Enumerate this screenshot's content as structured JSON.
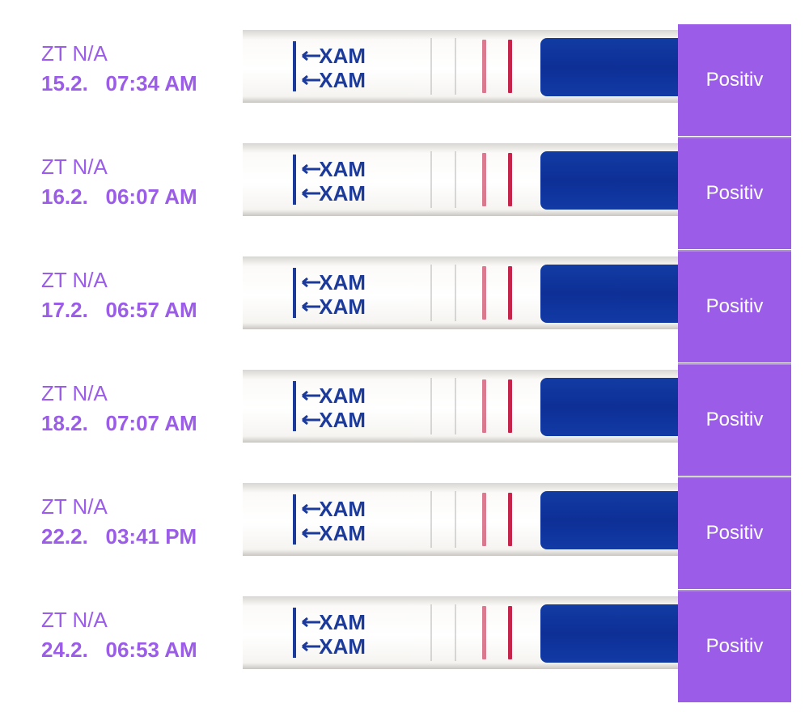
{
  "colors": {
    "accent": "#9b5de8",
    "result_text": "#ffffff",
    "strip_blue": "#0d2f96",
    "test_line": "#c4254a"
  },
  "strip_marking": "MAX",
  "tests": [
    {
      "zt": "ZT N/A",
      "datetime": "15.2.   07:34 AM",
      "result": "Positiv"
    },
    {
      "zt": "ZT N/A",
      "datetime": "16.2.   06:07 AM",
      "result": "Positiv"
    },
    {
      "zt": "ZT N/A",
      "datetime": "17.2.   06:57 AM",
      "result": "Positiv"
    },
    {
      "zt": "ZT N/A",
      "datetime": "18.2.   07:07 AM",
      "result": "Positiv"
    },
    {
      "zt": "ZT N/A",
      "datetime": "22.2.   03:41 PM",
      "result": "Positiv"
    },
    {
      "zt": "ZT N/A",
      "datetime": "24.2.   06:53 AM",
      "result": "Positiv"
    }
  ]
}
